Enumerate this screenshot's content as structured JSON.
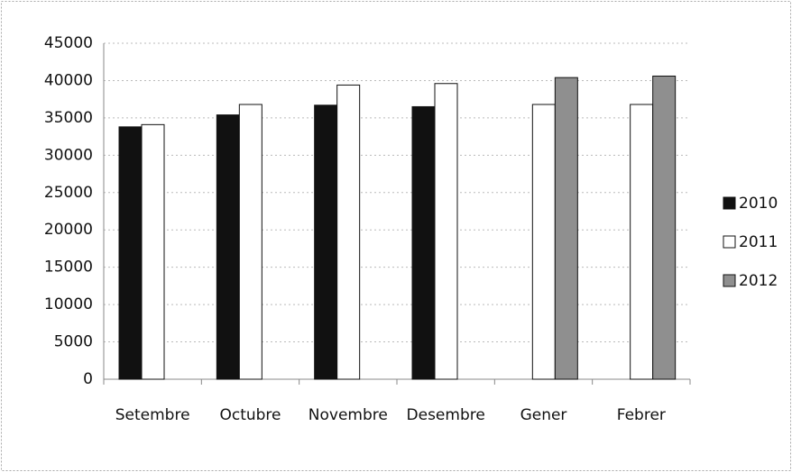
{
  "chart_data": {
    "type": "bar",
    "categories": [
      "Setembre",
      "Octubre",
      "Novembre",
      "Desembre",
      "Gener",
      "Febrer"
    ],
    "series": [
      {
        "name": "2010",
        "color": "#111111",
        "values": [
          33800,
          35400,
          36700,
          36500,
          null,
          null
        ]
      },
      {
        "name": "2011",
        "color": "#ffffff",
        "values": [
          34100,
          36800,
          39400,
          39600,
          36800,
          36800
        ]
      },
      {
        "name": "2012",
        "color": "#8f8f8f",
        "values": [
          null,
          null,
          null,
          null,
          40400,
          40600
        ]
      }
    ],
    "ylim": [
      0,
      45000
    ],
    "yticks": [
      0,
      5000,
      10000,
      15000,
      20000,
      25000,
      30000,
      35000,
      40000,
      45000
    ],
    "grid": true,
    "legend": "right"
  }
}
